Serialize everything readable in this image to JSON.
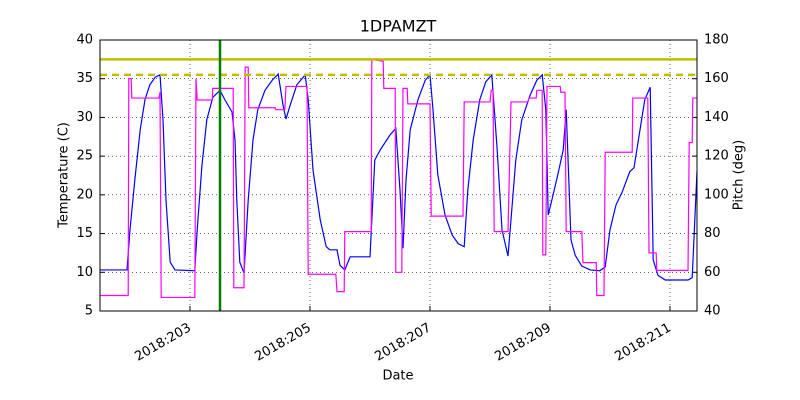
{
  "chart_data": {
    "type": "line",
    "title": "1DPAMZT",
    "xlabel": "Date",
    "ylabel": "Temperature (C)",
    "y2label": "Pitch (deg)",
    "y2color": "#ff00ff",
    "grid": true,
    "xlim": [
      201.5,
      211.45
    ],
    "xticks": [
      {
        "value": 203,
        "label": "2018:203"
      },
      {
        "value": 205,
        "label": "2018:205"
      },
      {
        "value": 207,
        "label": "2018:207"
      },
      {
        "value": 209,
        "label": "2018:209"
      },
      {
        "value": 211,
        "label": "2018:211"
      }
    ],
    "ylim": [
      5,
      40
    ],
    "yticks": [
      5,
      10,
      15,
      20,
      25,
      30,
      35,
      40
    ],
    "y2lim": [
      40,
      180
    ],
    "y2ticks": [
      40,
      60,
      80,
      100,
      120,
      140,
      160,
      180
    ],
    "hlines": [
      {
        "value": 37.5,
        "color": "#bfbf00",
        "style": "solid"
      },
      {
        "value": 35.5,
        "color": "#bfbf00",
        "style": "dashed"
      }
    ],
    "vlines": [
      {
        "value": 203.5,
        "color": "#008000"
      }
    ],
    "series": [
      {
        "color": "#0000ff",
        "x": [
          201.5,
          201.95,
          202.0,
          202.08,
          202.17,
          202.25,
          202.33,
          202.42,
          202.5,
          202.55,
          202.6,
          202.67,
          202.75,
          203.08,
          203.12,
          203.2,
          203.28,
          203.38,
          203.5,
          203.58,
          203.7,
          203.75,
          203.78,
          203.83,
          203.9,
          203.97,
          204.05,
          204.13,
          204.25,
          204.37,
          204.47,
          204.55,
          204.6,
          204.67,
          204.78,
          204.92,
          204.97,
          205.05,
          205.17,
          205.27,
          205.33,
          205.45,
          205.5,
          205.58,
          205.67,
          206.0,
          206.08,
          206.17,
          206.33,
          206.43,
          206.5,
          206.55,
          206.6,
          206.67,
          206.8,
          206.92,
          207.0,
          207.05,
          207.13,
          207.25,
          207.37,
          207.47,
          207.57,
          207.63,
          207.72,
          207.83,
          207.93,
          208.03,
          208.12,
          208.2,
          208.3,
          208.35,
          208.43,
          208.53,
          208.67,
          208.78,
          208.87,
          208.93,
          208.97,
          209.03,
          209.13,
          209.22,
          209.27,
          209.35,
          209.42,
          209.53,
          209.67,
          209.83,
          209.92,
          210.0,
          210.1,
          210.2,
          210.33,
          210.4,
          210.5,
          210.58,
          210.67,
          210.72,
          210.8,
          210.92,
          211.3,
          211.37,
          211.45
        ],
        "values": [
          10.3,
          10.3,
          15.5,
          21.9,
          28.4,
          32.3,
          34.2,
          35.2,
          35.5,
          29.7,
          19.3,
          11.3,
          10.3,
          10.2,
          15.5,
          23.9,
          29.7,
          32.6,
          33.5,
          32.3,
          30.7,
          27.1,
          19.3,
          11.3,
          9.9,
          19.3,
          27.1,
          31.0,
          33.5,
          34.8,
          35.6,
          31.6,
          29.8,
          31.6,
          34.2,
          35.5,
          32.3,
          23.2,
          16.8,
          13.3,
          12.9,
          12.9,
          10.9,
          10.3,
          12.0,
          12.0,
          24.5,
          25.8,
          27.7,
          28.6,
          20.6,
          13.1,
          21.9,
          28.4,
          32.3,
          34.8,
          35.5,
          31.0,
          22.6,
          17.4,
          14.8,
          13.7,
          13.3,
          20.6,
          27.1,
          32.3,
          34.6,
          35.5,
          25.8,
          15.5,
          12.1,
          16.8,
          24.5,
          29.7,
          32.9,
          34.8,
          35.5,
          31.0,
          17.4,
          19.3,
          22.6,
          25.8,
          31.0,
          14.2,
          12.2,
          10.8,
          10.3,
          10.2,
          10.7,
          15.5,
          18.7,
          20.3,
          23.0,
          23.5,
          28.4,
          32.3,
          33.9,
          11.6,
          9.6,
          9.0,
          9.0,
          9.3,
          23.0
        ]
      },
      {
        "color": "#ff00ff",
        "axis": "y2",
        "x": [
          201.5,
          201.97,
          201.98,
          202.02,
          202.03,
          202.48,
          202.5,
          202.52,
          203.08,
          203.1,
          203.12,
          203.37,
          203.38,
          203.72,
          203.73,
          203.9,
          203.92,
          203.97,
          203.98,
          204.42,
          204.43,
          204.58,
          204.6,
          204.95,
          204.97,
          205.43,
          205.45,
          205.57,
          205.58,
          206.02,
          206.03,
          206.22,
          206.23,
          206.42,
          206.43,
          206.53,
          206.55,
          206.62,
          206.63,
          207.0,
          207.02,
          207.55,
          207.57,
          208.0,
          208.02,
          208.05,
          208.07,
          208.3,
          208.35,
          208.63,
          208.65,
          208.77,
          208.78,
          208.87,
          208.88,
          208.93,
          208.95,
          209.17,
          209.18,
          209.25,
          209.27,
          209.53,
          209.55,
          209.77,
          209.78,
          209.9,
          209.92,
          210.37,
          210.38,
          210.63,
          210.65,
          210.77,
          210.78,
          211.3,
          211.32,
          211.37,
          211.38,
          211.45
        ],
        "values": [
          48,
          48,
          160,
          160,
          150,
          150,
          153,
          47,
          47,
          160,
          149,
          149,
          155,
          155,
          52,
          52,
          166,
          166,
          145,
          145,
          144,
          144,
          156,
          156,
          59,
          59,
          50,
          50,
          81,
          81,
          170,
          169,
          155,
          155,
          60,
          60,
          155,
          155,
          147,
          147,
          89,
          89,
          148,
          148,
          154,
          154,
          81,
          81,
          148,
          148,
          150,
          150,
          154,
          154,
          69,
          69,
          156,
          156,
          153,
          153,
          81,
          81,
          65,
          65,
          48,
          48,
          122,
          122,
          150,
          150,
          70,
          70,
          61,
          61,
          127,
          127,
          150,
          150
        ]
      }
    ]
  }
}
